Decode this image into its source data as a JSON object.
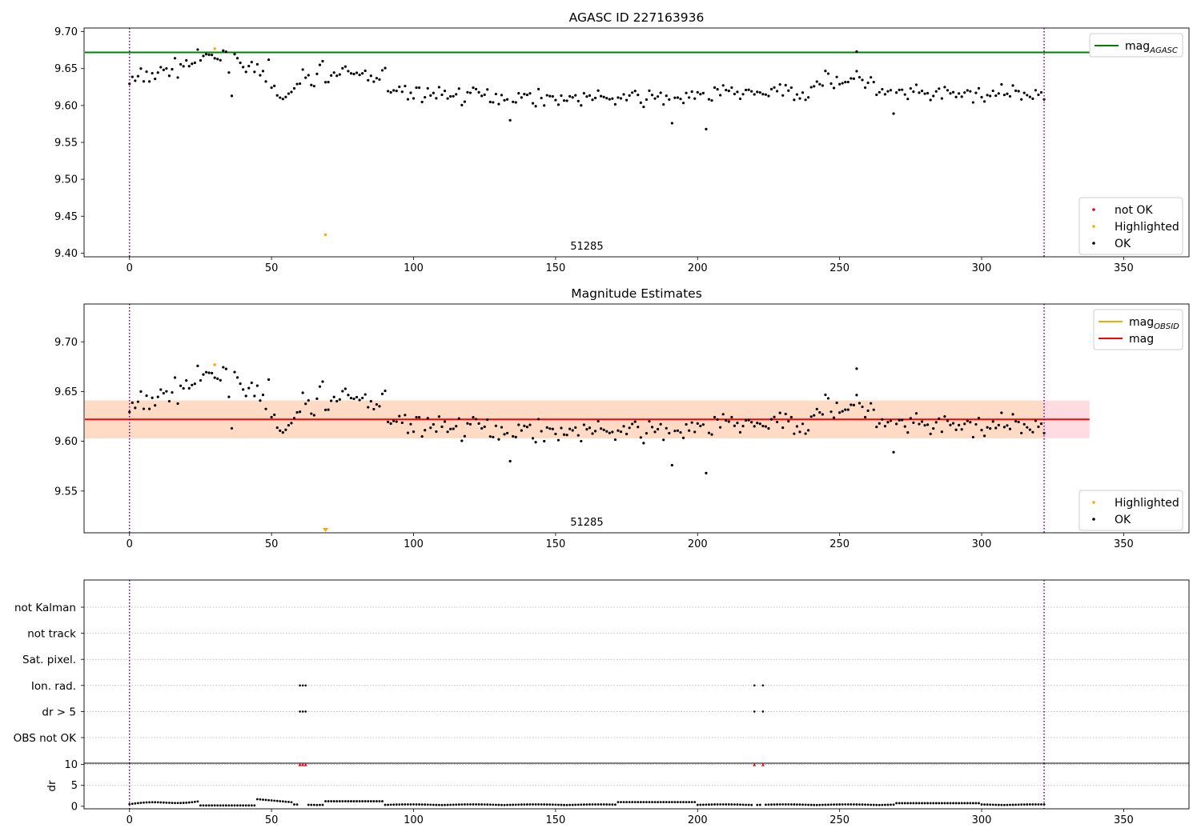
{
  "chart_data": [
    {
      "type": "scatter",
      "title": "AGASC ID 227163936",
      "xlim": [
        -16,
        373
      ],
      "ylim": [
        9.395,
        9.705
      ],
      "x_ticks": [
        0,
        50,
        100,
        150,
        200,
        250,
        300,
        350
      ],
      "y_ticks": [
        9.4,
        9.45,
        9.5,
        9.55,
        9.6,
        9.65,
        9.7
      ],
      "y_tick_labels": [
        "9.40",
        "9.45",
        "9.50",
        "9.55",
        "9.60",
        "9.65",
        "9.70"
      ],
      "obsid_label": "51285",
      "obsid_label_x": 161,
      "obs_boundaries": [
        0,
        322
      ],
      "reference_line": {
        "name": "mag_AGASC",
        "value": 9.672,
        "x_range": [
          -16,
          338
        ],
        "color": "#008000"
      },
      "legend_lines": [
        {
          "name": "mag",
          "subscript": "AGASC",
          "color": "#008000"
        }
      ],
      "legend_markers": [
        {
          "name": "not OK",
          "color": "#ff0000"
        },
        {
          "name": "Highlighted",
          "color": "#ffa500"
        },
        {
          "name": "OK",
          "color": "#000000"
        }
      ],
      "highlighted": [
        [
          30,
          9.677
        ],
        [
          69,
          9.425
        ]
      ],
      "extra_points": [
        [
          256,
          9.673
        ]
      ]
    },
    {
      "type": "scatter",
      "title": "Magnitude Estimates",
      "xlim": [
        -16,
        373
      ],
      "ylim": [
        9.508,
        9.738
      ],
      "x_ticks": [
        0,
        50,
        100,
        150,
        200,
        250,
        300,
        350
      ],
      "y_ticks": [
        9.55,
        9.6,
        9.65,
        9.7
      ],
      "y_tick_labels": [
        "9.55",
        "9.60",
        "9.65",
        "9.70"
      ],
      "obsid_label": "51285",
      "obsid_label_x": 161,
      "obs_boundaries": [
        0,
        322
      ],
      "mag_line": {
        "value": 9.622,
        "band": [
          9.603,
          9.641
        ],
        "x_range": [
          -16,
          338
        ],
        "color": "#ff0000"
      },
      "obsid_band": {
        "value": 9.622,
        "band": [
          9.603,
          9.641
        ],
        "x_range": [
          0,
          322
        ],
        "color": "#ffa500"
      },
      "legend_lines": [
        {
          "name": "mag",
          "subscript": "OBSID",
          "color": "#ffa500"
        },
        {
          "name": "mag",
          "subscript": "",
          "color": "#ff0000"
        }
      ],
      "legend_markers": [
        {
          "name": "Highlighted",
          "color": "#ffa500"
        },
        {
          "name": "OK",
          "color": "#000000"
        }
      ],
      "highlighted": [
        [
          30,
          9.677
        ]
      ],
      "off_scale_marker": {
        "x": 69,
        "color": "#ffa500"
      },
      "extra_points": [
        [
          256,
          9.673
        ]
      ]
    },
    {
      "type": "scatter",
      "title": "",
      "xlim": [
        -16,
        373
      ],
      "x_ticks": [
        0,
        50,
        100,
        150,
        200,
        250,
        300,
        350
      ],
      "flag_rows": [
        "not Kalman",
        "not track",
        "Sat. pixel.",
        "Ion. rad.",
        "dr > 5",
        "OBS not OK"
      ],
      "flag_points": [
        {
          "row": "Ion. rad.",
          "x": [
            60,
            61,
            62,
            220,
            223
          ]
        },
        {
          "row": "dr > 5",
          "x": [
            60,
            61,
            62,
            220,
            223
          ]
        }
      ],
      "obs_boundaries": [
        0,
        322
      ]
    },
    {
      "type": "scatter",
      "title": "",
      "ylabel": "dr",
      "xlim": [
        -16,
        373
      ],
      "ylim": [
        -0.6,
        10.3
      ],
      "x_ticks": [
        0,
        50,
        100,
        150,
        200,
        250,
        300,
        350
      ],
      "y_ticks": [
        0,
        5,
        10
      ],
      "y_tick_labels": [
        "0",
        "5",
        "10"
      ],
      "capped_points": {
        "value": 10,
        "x": [
          60,
          61,
          62,
          220,
          223
        ],
        "color": "#ff0000"
      },
      "obs_boundaries": [
        0,
        322
      ]
    }
  ],
  "colors": {
    "ok": "#000000",
    "not_ok": "#ff0000",
    "highlighted": "#ffa500",
    "boundary": "#800080",
    "agasc_line": "#008000",
    "mag_line": "#ff0000",
    "mag_band": "#ffc0cb",
    "obsid_line": "#ffa500",
    "obsid_band": "#ffdab9"
  }
}
